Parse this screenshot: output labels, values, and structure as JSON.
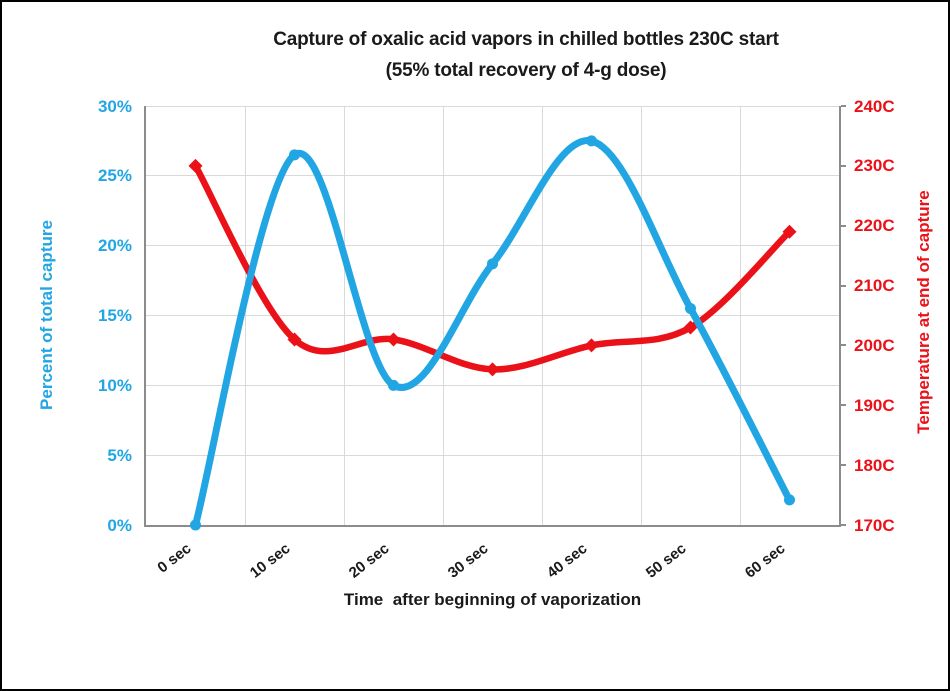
{
  "chart_data": {
    "type": "line",
    "smooth": true,
    "grid": true,
    "legend_position": "none",
    "title": "Capture of oxalic acid vapors in chilled bottles 230C start",
    "subtitle": "(55% total recovery of 4-g dose)",
    "xlabel": "Time  after beginning of vaporization",
    "categories": [
      "0 sec",
      "10 sec",
      "20 sec",
      "30 sec",
      "40 sec",
      "50 sec",
      "60 sec"
    ],
    "series": [
      {
        "name": "Percent of total capture",
        "axis": "left",
        "marker": "circle",
        "color": "#22a6e3",
        "unit": "%",
        "values": [
          0,
          26.5,
          10,
          18.7,
          27.5,
          15.5,
          1.8
        ]
      },
      {
        "name": "Temperature at end of capture",
        "axis": "right",
        "marker": "diamond",
        "color": "#ea1218",
        "unit": "C",
        "values": [
          230,
          201,
          201,
          196,
          200,
          203,
          219
        ]
      }
    ],
    "left_axis": {
      "title": "Percent of total capture",
      "color": "#22a6e3",
      "min": 0,
      "max": 30,
      "step": 5,
      "tick_labels": [
        "0%",
        "5%",
        "10%",
        "15%",
        "20%",
        "25%",
        "30%"
      ]
    },
    "right_axis": {
      "title": "Temperature at end of capture",
      "color": "#ea1218",
      "min": 170,
      "max": 240,
      "step": 10,
      "tick_labels": [
        "170C",
        "180C",
        "190C",
        "200C",
        "210C",
        "220C",
        "230C",
        "240C"
      ]
    }
  },
  "colors": {
    "gridline": "#d9d9d9",
    "axis_line": "#8c8c8c",
    "text": "#1a1a1a",
    "background": "#ffffff",
    "frame_border": "#000000"
  }
}
